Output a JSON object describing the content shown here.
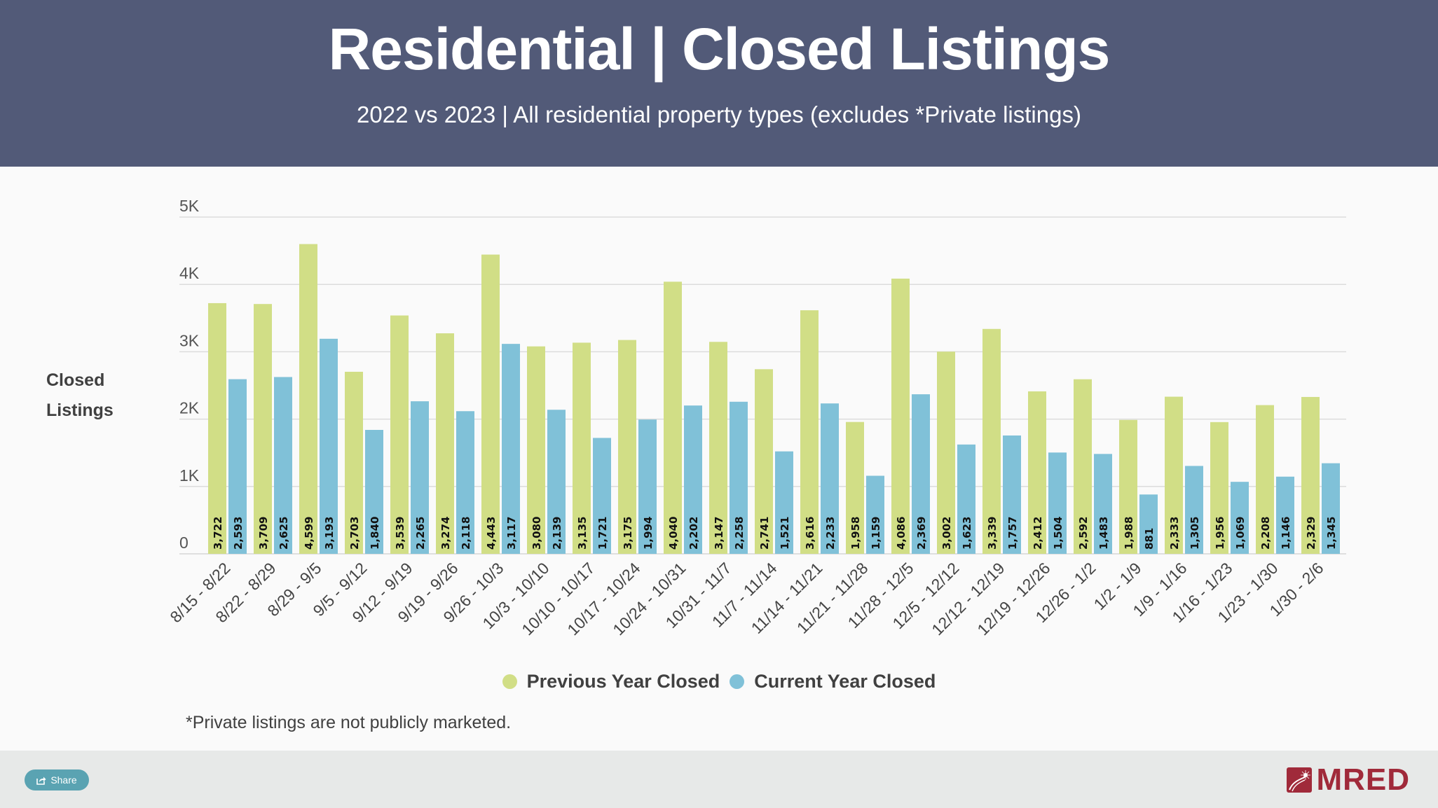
{
  "header": {
    "title": "Residential | Closed Listings",
    "subtitle": "2022 vs 2023 | All residential property types (excludes *Private listings)"
  },
  "footnote": "*Private listings are not publicly marketed.",
  "footer": {
    "share_label": "Share",
    "share_icon": "share-icon",
    "logo_text": "MRED"
  },
  "colors": {
    "header_bg": "#525a78",
    "previous_year": "#d1de86",
    "current_year": "#80c1d8",
    "share_button": "#5aa3b2",
    "logo": "#a02a3a"
  },
  "chart_data": {
    "type": "bar",
    "title": "Residential | Closed Listings",
    "subtitle": "2022 vs 2023 | All residential property types (excludes *Private listings)",
    "xlabel": "",
    "ylabel": "Closed Listings",
    "ylabel_lines": [
      "Closed",
      "Listings"
    ],
    "ylim": [
      0,
      5000
    ],
    "yticks": [
      0,
      1000,
      2000,
      3000,
      4000,
      5000
    ],
    "ytick_labels": [
      "0",
      "1K",
      "2K",
      "3K",
      "4K",
      "5K"
    ],
    "grid": true,
    "legend_position": "bottom",
    "categories": [
      "8/15 - 8/22",
      "8/22 - 8/29",
      "8/29 - 9/5",
      "9/5 - 9/12",
      "9/12 - 9/19",
      "9/19 - 9/26",
      "9/26 - 10/3",
      "10/3 - 10/10",
      "10/10 - 10/17",
      "10/17 - 10/24",
      "10/24 - 10/31",
      "10/31 - 11/7",
      "11/7 - 11/14",
      "11/14 - 11/21",
      "11/21 - 11/28",
      "11/28 - 12/5",
      "12/5 - 12/12",
      "12/12 - 12/19",
      "12/19 - 12/26",
      "12/26 - 1/2",
      "1/2 - 1/9",
      "1/9 - 1/16",
      "1/16 - 1/23",
      "1/23 - 1/30",
      "1/30 - 2/6"
    ],
    "series": [
      {
        "name": "Previous Year Closed",
        "color": "#d1de86",
        "values": [
          3722,
          3709,
          4599,
          2703,
          3539,
          3274,
          4443,
          3080,
          3135,
          3175,
          4040,
          3147,
          2741,
          3616,
          1958,
          4086,
          3002,
          3339,
          2412,
          2592,
          1988,
          2333,
          1956,
          2208,
          2329
        ]
      },
      {
        "name": "Current Year Closed",
        "color": "#80c1d8",
        "values": [
          2593,
          2625,
          3193,
          1840,
          2265,
          2118,
          3117,
          2139,
          1721,
          1994,
          2202,
          2258,
          1521,
          2233,
          1159,
          2369,
          1623,
          1757,
          1504,
          1483,
          881,
          1305,
          1069,
          1146,
          1345
        ]
      }
    ]
  }
}
